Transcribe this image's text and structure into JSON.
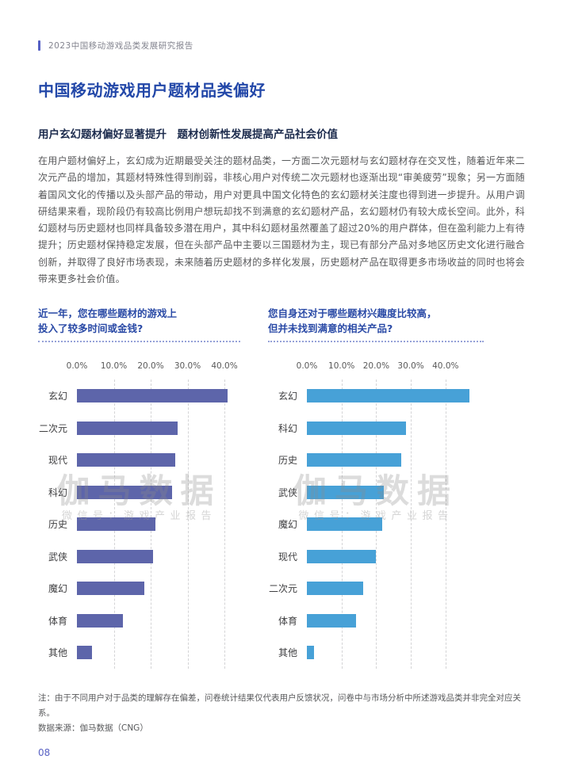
{
  "header": {
    "report_title": "2023中国移动游戏品类发展研究报告"
  },
  "main": {
    "title": "中国移动游戏用户题材品类偏好",
    "subtitle": "用户玄幻题材偏好显著提升　题材创新性发展提高产品社会价值",
    "body": "在用户题材偏好上，玄幻成为近期最受关注的题材品类，一方面二次元题材与玄幻题材存在交叉性，随着近年来二次元产品的增加，其题材特殊性得到削弱，非核心用户对传统二次元题材也逐渐出现“审美疲劳”现象；另一方面随着国风文化的传播以及头部产品的带动，用户对更具中国文化特色的玄幻题材关注度也得到进一步提升。从用户调研结果来看，现阶段仍有较高比例用户想玩却找不到满意的玄幻题材产品，玄幻题材仍有较大成长空间。此外，科幻题材与历史题材也同样具备较多潜在用户，其中科幻题材虽然覆盖了超过20%的用户群体，但在盈利能力上有待提升；历史题材保持稳定发展，但在头部产品中主要以三国题材为主，现已有部分产品对多地区历史文化进行融合创新，并取得了良好市场表现，未来随着历史题材的多样化发展，历史题材产品在取得更多市场收益的同时也将会带来更多社会价值。",
    "note_line1": "注：由于不同用户对于品类的理解存在偏差，问卷统计结果仅代表用户反馈状况，问卷中与市场分析中所述游戏品类并非完全对应关系。",
    "note_line2": "数据来源：伽马数据（CNG）",
    "page_number": "08"
  },
  "watermark": {
    "main": "伽马数据",
    "sub": "微信号：游戏产业报告"
  },
  "colors": {
    "title_blue": "#2247a8",
    "chart_title_blue": "#2a4aa6",
    "header_accent": "#5560c4",
    "left_bar": "#5d65aa",
    "right_bar": "#47a1d7",
    "dotted_divider": "#96a2d8"
  },
  "chart_data": [
    {
      "type": "bar",
      "orientation": "horizontal",
      "title": "近一年，您在哪些题材的游戏上投入了较多时间或金钱?",
      "title_lines": [
        "近一年，您在哪些题材的游戏上",
        "投入了较多时间或金钱?"
      ],
      "categories": [
        "玄幻",
        "二次元",
        "现代",
        "科幻",
        "历史",
        "武侠",
        "魔幻",
        "体育",
        "其他"
      ],
      "values": [
        40.8,
        27.3,
        26.7,
        25.8,
        21.3,
        20.6,
        18.3,
        12.5,
        4.0
      ],
      "x_ticks": [
        "0.0%",
        "10.0%",
        "20.0%",
        "30.0%",
        "40.0%"
      ],
      "xlim": [
        0,
        45
      ],
      "grid": "dashed-vertical",
      "legend": "none",
      "bar_color": "#5d65aa"
    },
    {
      "type": "bar",
      "orientation": "horizontal",
      "title": "您自身还对于哪些题材兴趣度比较高，但并未找到满意的相关产品?",
      "title_lines": [
        "您自身还对于哪些题材兴趣度比较高，",
        "但并未找到满意的相关产品?"
      ],
      "categories": [
        "玄幻",
        "科幻",
        "历史",
        "武侠",
        "魔幻",
        "现代",
        "二次元",
        "体育",
        "其他"
      ],
      "values": [
        47.0,
        28.6,
        27.2,
        22.1,
        21.7,
        20.0,
        16.3,
        14.2,
        2.0
      ],
      "x_ticks": [
        "0.0%",
        "10.0%",
        "20.0%",
        "30.0%",
        "40.0%"
      ],
      "xlim": [
        0,
        47
      ],
      "grid": "dashed-vertical",
      "legend": "none",
      "bar_color": "#47a1d7"
    }
  ]
}
